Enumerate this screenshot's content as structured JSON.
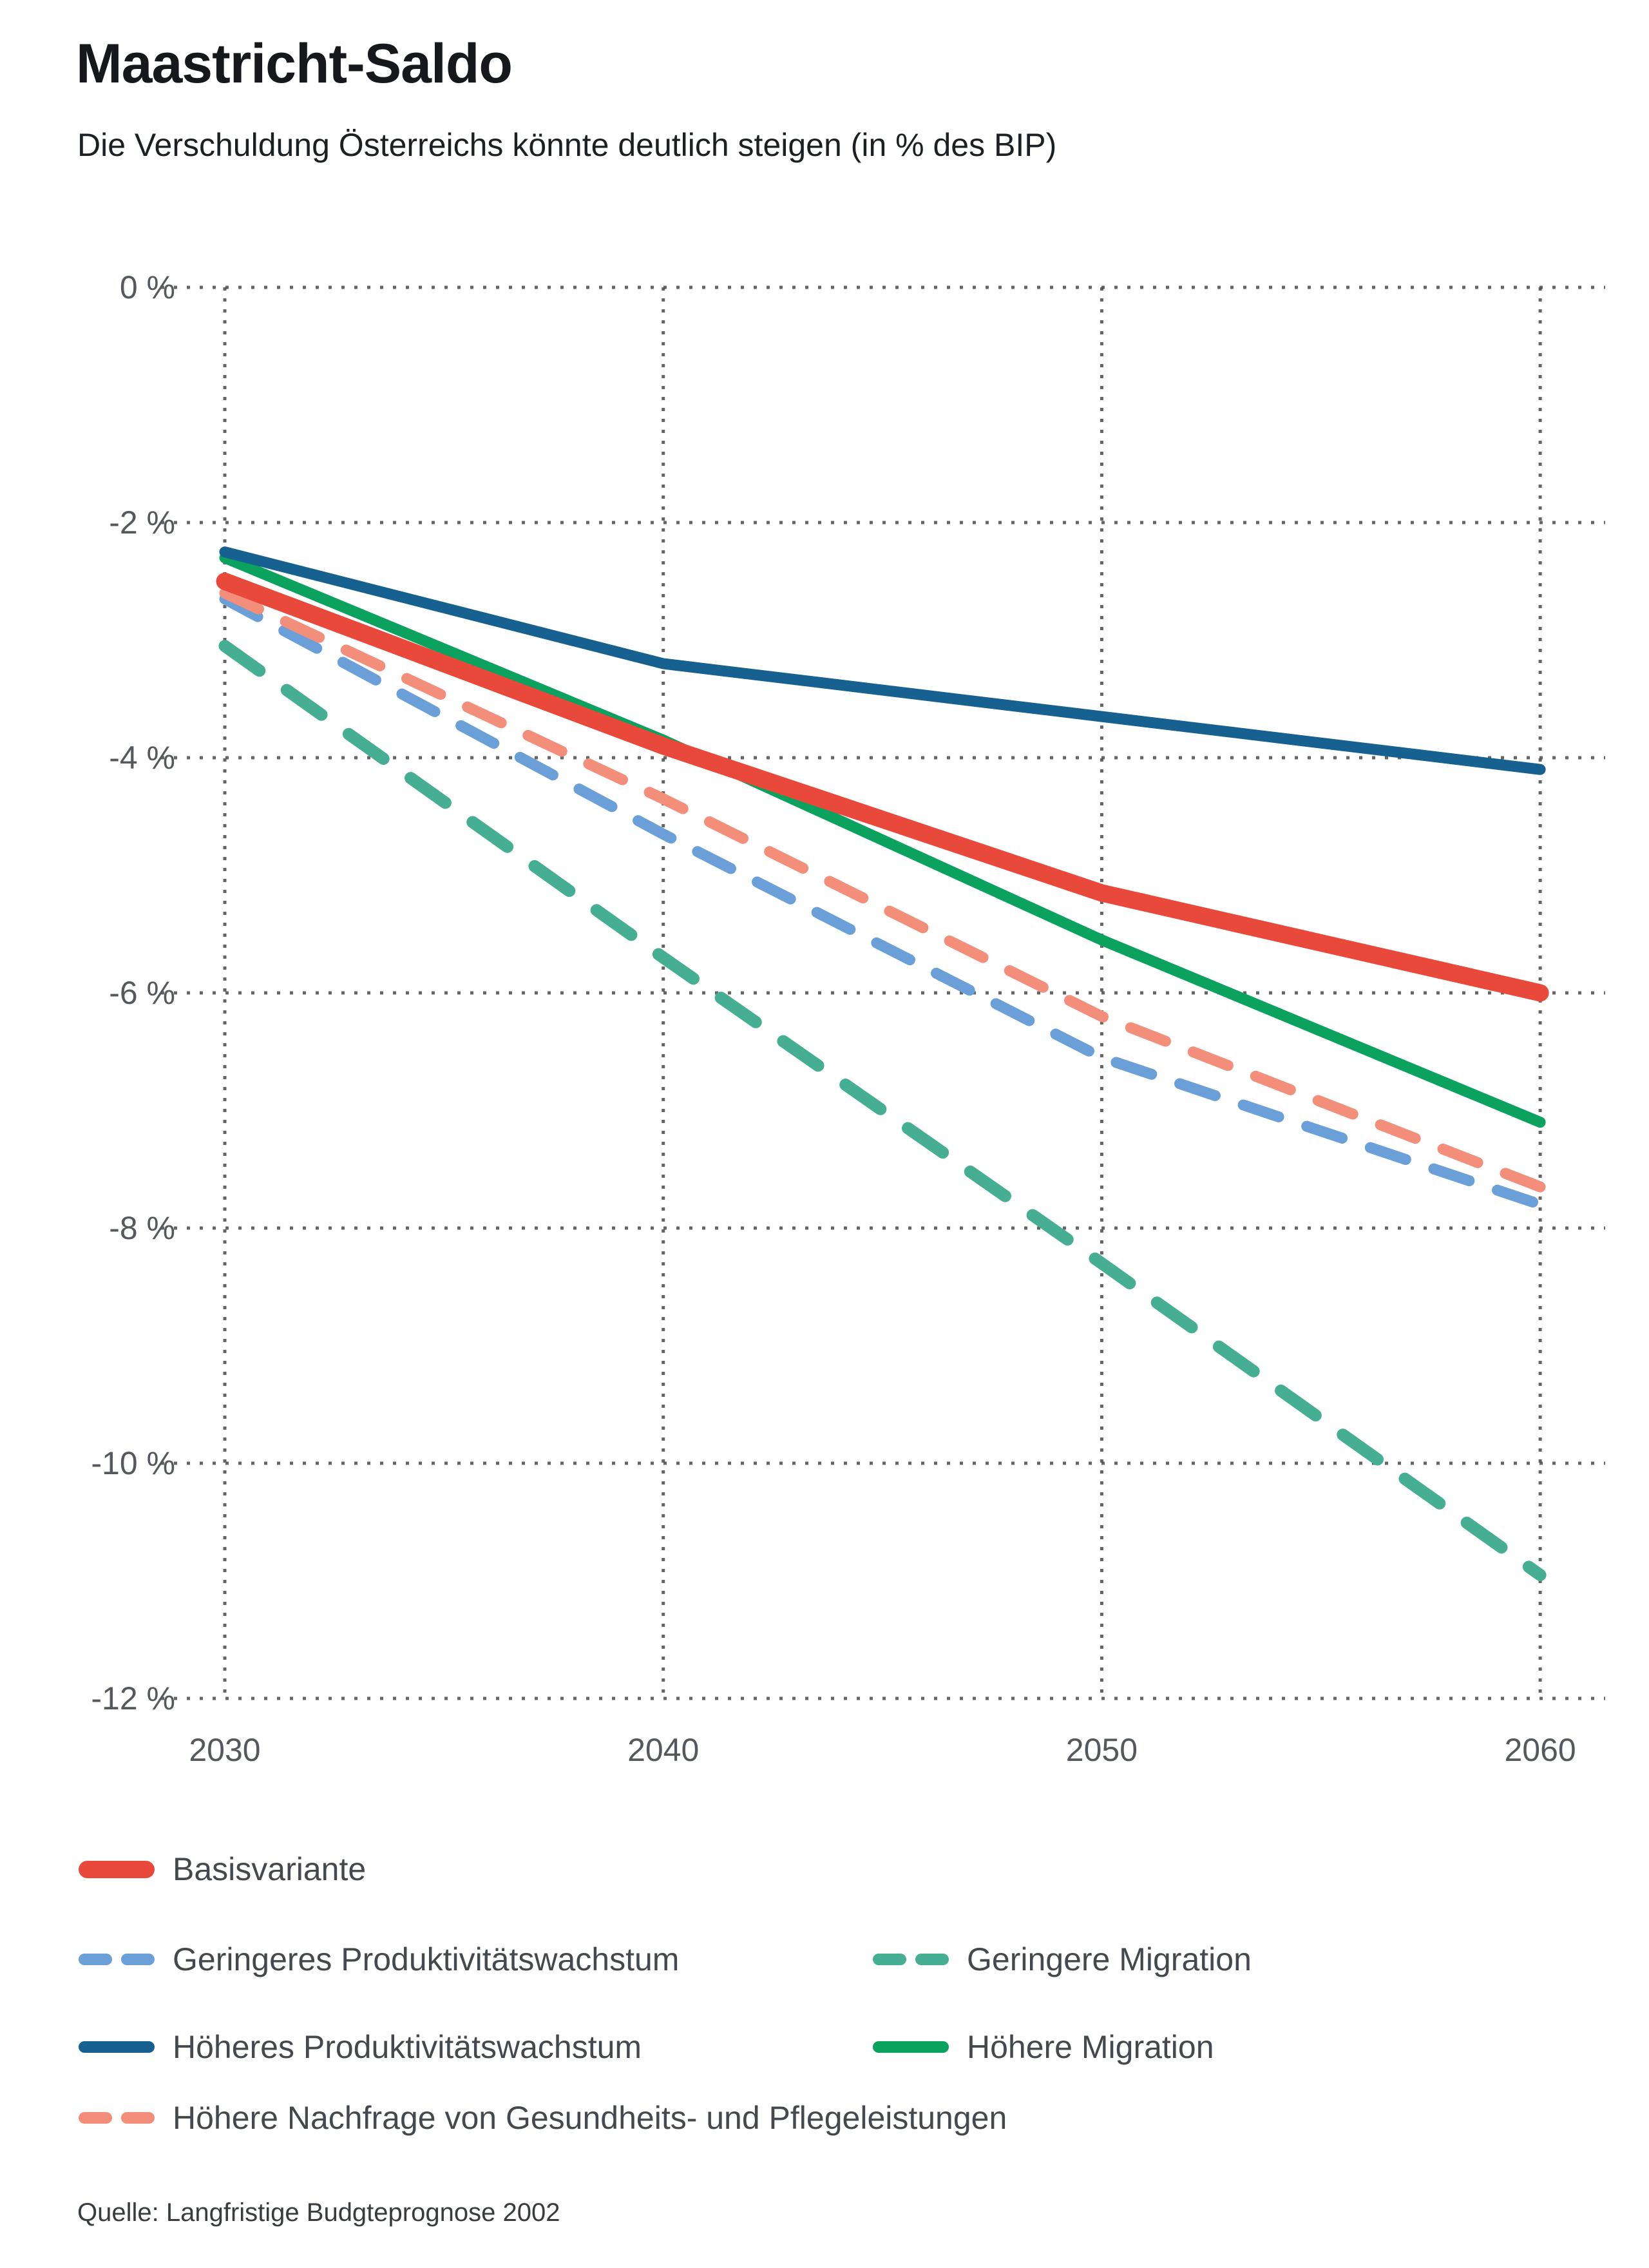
{
  "header": {
    "title": "Maastricht-Saldo",
    "subtitle": "Die Verschuldung Österreichs könnte deutlich steigen (in % des BIP)"
  },
  "source": "Quelle: Langfristige Budgteprognose 2002",
  "colors": {
    "background": "#ffffff",
    "grid": "#4b4b4b",
    "axis_text": "#55585c",
    "legend_text": "#45494d",
    "title_text": "#16181b"
  },
  "chart_data": {
    "type": "line",
    "title": "Maastricht-Saldo",
    "subtitle": "Die Verschuldung Österreichs könnte deutlich steigen (in % des BIP)",
    "unit": "% des BIP",
    "x": [
      2030,
      2040,
      2050,
      2060
    ],
    "x_tick_labels": [
      "2030",
      "2040",
      "2050",
      "2060"
    ],
    "y_ticks": [
      0,
      -2,
      -4,
      -6,
      -8,
      -10,
      -12
    ],
    "y_tick_labels": [
      "0 %",
      "-2 %",
      "-4 %",
      "-6 %",
      "-8 %",
      "-10 %",
      "-12 %"
    ],
    "ylim": [
      -12,
      0
    ],
    "grid": "dotted horizontal and vertical",
    "legend_position": "below",
    "series": [
      {
        "name": "Basisvariante",
        "color": "#e8493a",
        "style": "solid",
        "values": [
          -2.5,
          -3.9,
          -5.15,
          -6.0
        ]
      },
      {
        "name": "Geringeres Produktivitätswachstum",
        "color": "#6b9fd8",
        "style": "dashed",
        "values": [
          -2.65,
          -4.65,
          -6.55,
          -7.8
        ]
      },
      {
        "name": "Höheres Produktivitätswachstum",
        "color": "#16618f",
        "style": "solid",
        "values": [
          -2.25,
          -3.2,
          -3.65,
          -4.1
        ]
      },
      {
        "name": "Geringere Migration",
        "color": "#45ae93",
        "style": "dashed",
        "values": [
          -3.05,
          -5.7,
          -8.3,
          -10.95
        ]
      },
      {
        "name": "Höhere Migration",
        "color": "#0ba15e",
        "style": "solid",
        "values": [
          -2.3,
          -3.85,
          -5.55,
          -7.1
        ]
      },
      {
        "name": "Höhere Nachfrage von Gesundheits- und Pflegeleistungen",
        "color": "#f28e79",
        "style": "dashed",
        "values": [
          -2.6,
          -4.35,
          -6.2,
          -7.65
        ]
      }
    ]
  }
}
